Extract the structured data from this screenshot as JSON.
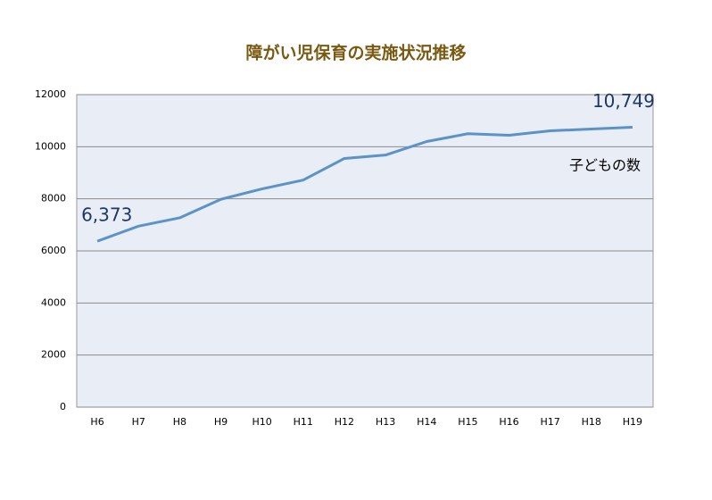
{
  "chart_data": {
    "type": "line",
    "title": "障がい児保育の実施状況推移",
    "categories": [
      "H6",
      "H7",
      "H8",
      "H9",
      "H10",
      "H11",
      "H12",
      "H13",
      "H14",
      "H15",
      "H16",
      "H17",
      "H18",
      "H19"
    ],
    "series": [
      {
        "name": "子どもの数",
        "color": "#5b93c9",
        "values": [
          6373,
          6950,
          7270,
          7980,
          8380,
          8720,
          9550,
          9680,
          10200,
          10500,
          10440,
          10610,
          10680,
          10749
        ],
        "value_labels": [
          "6,373",
          null,
          null,
          null,
          null,
          null,
          null,
          null,
          null,
          null,
          null,
          null,
          null,
          "10,749"
        ]
      }
    ],
    "ylim": [
      0,
      12000
    ],
    "yticks": [
      0,
      2000,
      4000,
      6000,
      8000,
      10000,
      12000
    ],
    "grid": true
  }
}
